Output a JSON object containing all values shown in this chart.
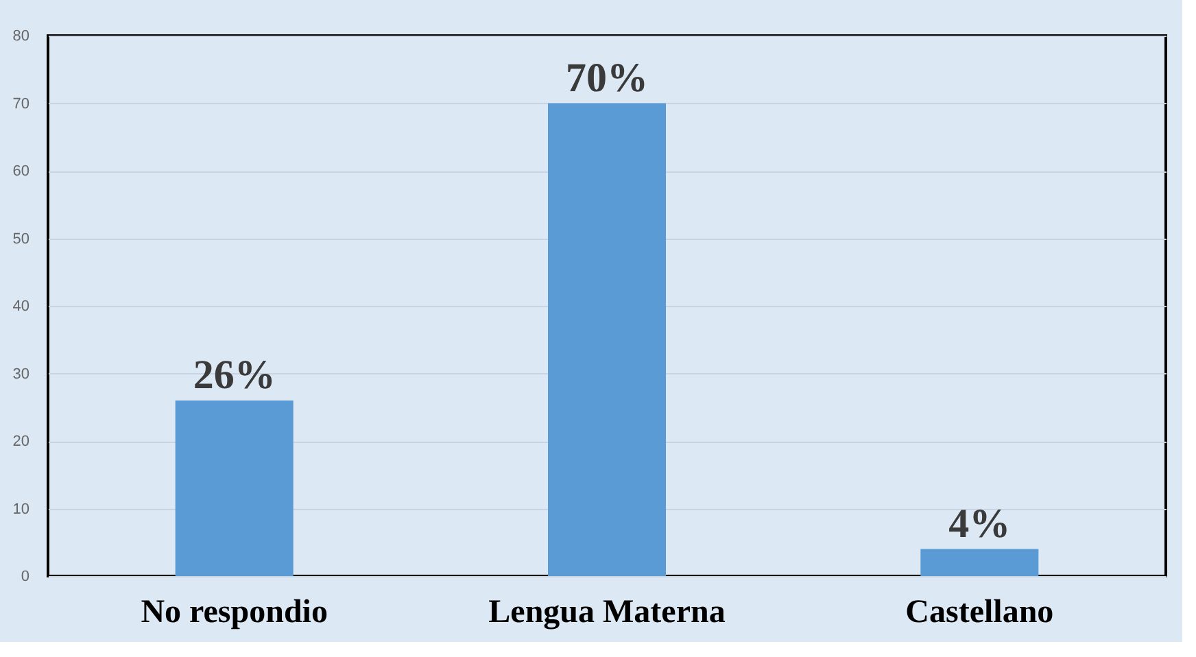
{
  "chart_data": {
    "type": "bar",
    "categories": [
      "No respondio",
      "Lengua Materna",
      "Castellano"
    ],
    "values": [
      26,
      70,
      4
    ],
    "value_labels": [
      "26%",
      "70%",
      "4%"
    ],
    "color": "#5b9bd5",
    "ylim": [
      0,
      80
    ],
    "yticks": [
      0,
      10,
      20,
      30,
      40,
      50,
      60,
      70,
      80
    ],
    "grid": "y"
  }
}
